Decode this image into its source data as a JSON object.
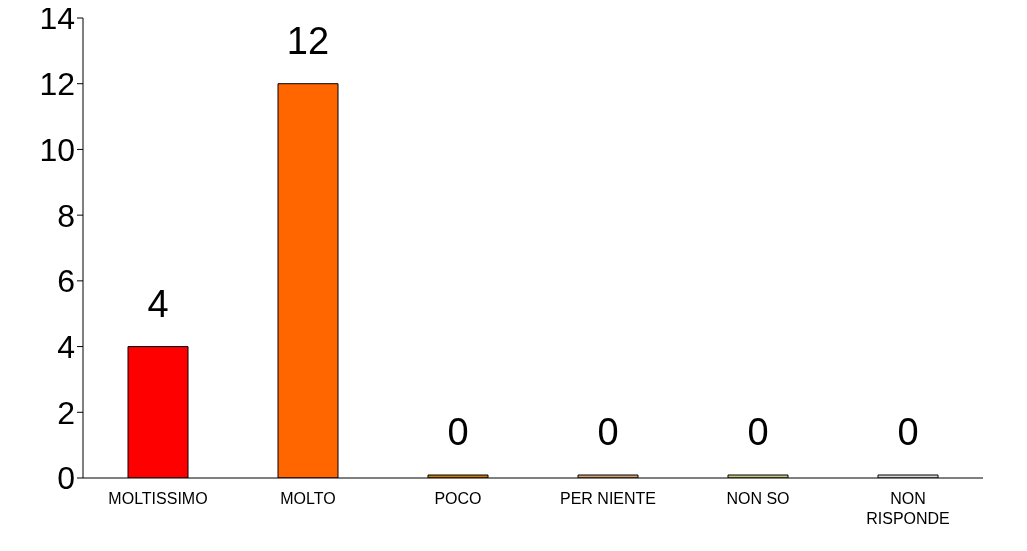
{
  "chart_data": {
    "type": "bar",
    "categories": [
      "MOLTISSIMO",
      "MOLTO",
      "POCO",
      "PER NIENTE",
      "NON SO",
      "NON RISPONDE"
    ],
    "values": [
      4,
      12,
      0,
      0,
      0,
      0
    ],
    "colors": [
      "#ff0000",
      "#ff6600",
      "#cc7a00",
      "#d4a373",
      "#c8c87a",
      "#d9d9d9"
    ],
    "ylim": [
      0,
      14
    ],
    "yticks": [
      0,
      2,
      4,
      6,
      8,
      10,
      12,
      14
    ],
    "grid": false,
    "legend": false,
    "data_labels": true
  }
}
